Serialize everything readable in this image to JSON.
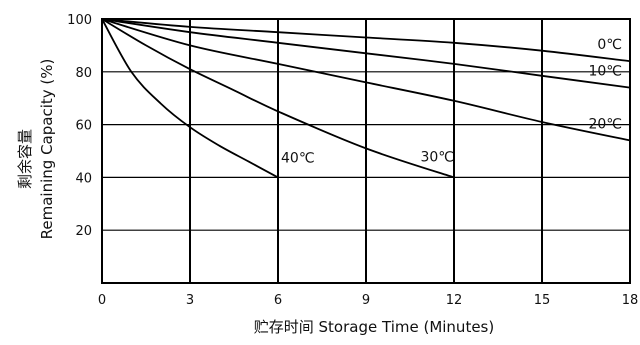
{
  "chart_data": {
    "type": "line",
    "title": "",
    "xlabel": "贮存时间 Storage Time (Minutes)",
    "ylabel_line1": "剩余容量",
    "ylabel_line2": "Remaining Capacity (%)",
    "xlim": [
      0,
      18
    ],
    "ylim": [
      0,
      100
    ],
    "x_ticks": [
      0,
      3,
      6,
      9,
      12,
      15,
      18
    ],
    "y_ticks": [
      20,
      40,
      60,
      80,
      100
    ],
    "grid": true,
    "legend": "none",
    "series": [
      {
        "name": "0℃",
        "points": [
          [
            0,
            100
          ],
          [
            3,
            97
          ],
          [
            6,
            95
          ],
          [
            9,
            93
          ],
          [
            12,
            91
          ],
          [
            15,
            88
          ],
          [
            18,
            84
          ]
        ]
      },
      {
        "name": "10℃",
        "points": [
          [
            0,
            100
          ],
          [
            3,
            95
          ],
          [
            6,
            91
          ],
          [
            9,
            87
          ],
          [
            12,
            83
          ],
          [
            15,
            78.5
          ],
          [
            18,
            74
          ]
        ]
      },
      {
        "name": "20℃",
        "points": [
          [
            0,
            100
          ],
          [
            3,
            90
          ],
          [
            6,
            83
          ],
          [
            9,
            76
          ],
          [
            12,
            69
          ],
          [
            15,
            61
          ],
          [
            18,
            54
          ]
        ]
      },
      {
        "name": "30℃",
        "points": [
          [
            0,
            100
          ],
          [
            1.5,
            90
          ],
          [
            3,
            81
          ],
          [
            4.5,
            73
          ],
          [
            6,
            65
          ],
          [
            9,
            51
          ],
          [
            12,
            40
          ]
        ]
      },
      {
        "name": "40℃",
        "points": [
          [
            0,
            100
          ],
          [
            1,
            80
          ],
          [
            2,
            68
          ],
          [
            3,
            59
          ],
          [
            4,
            52
          ],
          [
            5,
            46
          ],
          [
            6,
            40
          ]
        ]
      }
    ]
  }
}
